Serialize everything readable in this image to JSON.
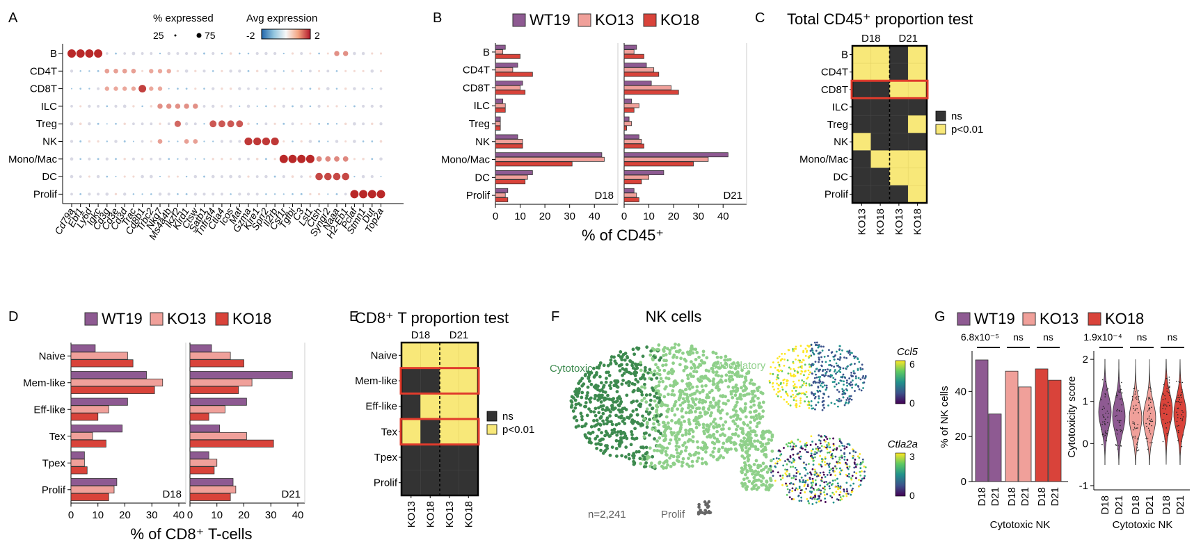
{
  "panels": {
    "A": "A",
    "B": "B",
    "C": "C",
    "D": "D",
    "E": "E",
    "F": "F",
    "G": "G"
  },
  "chart_data": [
    {
      "panel": "A",
      "type": "dotplot",
      "rows": [
        "B",
        "CD4T",
        "CD8T",
        "ILC",
        "Treg",
        "NK",
        "Mono/Mac",
        "DC",
        "Prolif"
      ],
      "genes": [
        "Cd79a",
        "Ebf1",
        "Ly6d",
        "Igkc",
        "Cd3g",
        "Cd3e",
        "Cd3d",
        "Trac",
        "Cd8b1",
        "Trbc2",
        "Nkg7",
        "Ms4a4b",
        "Ikzf2",
        "Klrd1",
        "Ctsw",
        "Satb1",
        "Tnfrsf4",
        "Ctla4",
        "Icos",
        "Maf",
        "Gzma",
        "Klre1",
        "Sprr2",
        "Il2rb",
        "Csf1r",
        "Tgfbi",
        "C3",
        "Lst1",
        "Ctsh",
        "Syngr2",
        "Naaa",
        "H2-Eb1",
        "Pclaf",
        "Stmn1",
        "Dut",
        "Top2a"
      ],
      "legend_size_title": "% expressed",
      "legend_size_ticks": [
        "25",
        "75"
      ],
      "legend_color_title": "Avg expression",
      "legend_color_ticks": [
        "-2",
        "2"
      ],
      "highlights": [
        {
          "row": "B",
          "cols": [
            0,
            1,
            2,
            3
          ],
          "level": 1.0
        },
        {
          "row": "B",
          "cols": [
            30,
            31
          ],
          "level": 0.35
        },
        {
          "row": "CD4T",
          "cols": [
            4,
            5,
            6,
            7
          ],
          "level": 0.25
        },
        {
          "row": "CD4T",
          "cols": [
            9,
            10,
            11
          ],
          "level": 0.2
        },
        {
          "row": "CD8T",
          "cols": [
            4,
            5,
            6,
            7,
            9,
            10
          ],
          "level": 0.2
        },
        {
          "row": "CD8T",
          "cols": [
            8
          ],
          "level": 0.85
        },
        {
          "row": "ILC",
          "cols": [
            10,
            11,
            12,
            13,
            14
          ],
          "level": 0.35
        },
        {
          "row": "Treg",
          "cols": [
            12
          ],
          "level": 0.6
        },
        {
          "row": "Treg",
          "cols": [
            16,
            17,
            18,
            19
          ],
          "level": 0.7
        },
        {
          "row": "NK",
          "cols": [
            10,
            13,
            14
          ],
          "level": 0.25
        },
        {
          "row": "NK",
          "cols": [
            20,
            21,
            22,
            23
          ],
          "level": 0.9
        },
        {
          "row": "Mono/Mac",
          "cols": [
            24,
            25,
            26,
            27
          ],
          "level": 1.0
        },
        {
          "row": "Mono/Mac",
          "cols": [
            28,
            29,
            30,
            31
          ],
          "level": 0.4
        },
        {
          "row": "DC",
          "cols": [
            28,
            29,
            30,
            31
          ],
          "level": 0.8
        },
        {
          "row": "Prolif",
          "cols": [
            32,
            33,
            34,
            35
          ],
          "level": 1.0
        }
      ]
    },
    {
      "panel": "B",
      "type": "bar",
      "orientation": "horizontal",
      "series_names": [
        "WT19",
        "KO13",
        "KO18"
      ],
      "categories": [
        "B",
        "CD4T",
        "CD8T",
        "ILC",
        "Treg",
        "NK",
        "Mono/Mac",
        "DC",
        "Prolif"
      ],
      "xlabel": "% of CD45⁺",
      "xticks": [
        "0",
        "10",
        "20",
        "30",
        "40"
      ],
      "xlim": [
        0,
        45
      ],
      "facets": [
        {
          "label": "D18",
          "series": [
            {
              "name": "WT19",
              "values": [
                4,
                9,
                11,
                3,
                2,
                9,
                43,
                15,
                5
              ]
            },
            {
              "name": "KO13",
              "values": [
                3,
                7,
                10,
                4,
                2,
                11,
                44,
                13,
                4
              ]
            },
            {
              "name": "KO18",
              "values": [
                10,
                15,
                12,
                4,
                2,
                11,
                31,
                12,
                5
              ]
            }
          ]
        },
        {
          "label": "D21",
          "series": [
            {
              "name": "WT19",
              "values": [
                5,
                9,
                11,
                3,
                2,
                6,
                42,
                16,
                4
              ]
            },
            {
              "name": "KO13",
              "values": [
                4,
                12,
                19,
                6,
                3,
                7,
                34,
                10,
                5
              ]
            },
            {
              "name": "KO18",
              "values": [
                8,
                14,
                22,
                4,
                1,
                8,
                28,
                7,
                6
              ]
            }
          ]
        }
      ]
    },
    {
      "panel": "C",
      "type": "heatmap",
      "title": "Total CD45⁺ proportion test",
      "col_groups": [
        "D18",
        "D21"
      ],
      "columns": [
        "KO13",
        "KO18",
        "KO13",
        "KO18"
      ],
      "rows": [
        "B",
        "CD4T",
        "CD8T",
        "ILC",
        "Treg",
        "NK",
        "Mono/Mac",
        "DC",
        "Prolif"
      ],
      "values": [
        [
          1,
          1,
          0,
          1
        ],
        [
          1,
          1,
          0,
          1
        ],
        [
          0,
          0,
          1,
          1
        ],
        [
          0,
          0,
          0,
          0
        ],
        [
          0,
          0,
          0,
          1
        ],
        [
          1,
          0,
          0,
          0
        ],
        [
          0,
          1,
          1,
          1
        ],
        [
          0,
          0,
          1,
          1
        ],
        [
          0,
          0,
          0,
          1
        ]
      ],
      "highlighted_rows": [
        "CD8T"
      ],
      "legend": [
        "ns",
        "p<0.01"
      ]
    },
    {
      "panel": "D",
      "type": "bar",
      "orientation": "horizontal",
      "series_names": [
        "WT19",
        "KO13",
        "KO18"
      ],
      "categories": [
        "Naive",
        "Mem-like",
        "Eff-like",
        "Tex",
        "Tpex",
        "Prolif"
      ],
      "xlabel": "% of CD8⁺ T-cells",
      "xticks": [
        "0",
        "10",
        "20",
        "30",
        "40"
      ],
      "xlim": [
        0,
        40
      ],
      "facets": [
        {
          "label": "D18",
          "series": [
            {
              "name": "WT19",
              "values": [
                9,
                28,
                21,
                19,
                5,
                17
              ]
            },
            {
              "name": "KO13",
              "values": [
                21,
                34,
                14,
                8,
                5,
                16
              ]
            },
            {
              "name": "KO18",
              "values": [
                23,
                31,
                10,
                13,
                6,
                14
              ]
            }
          ]
        },
        {
          "label": "D21",
          "series": [
            {
              "name": "WT19",
              "values": [
                8,
                38,
                21,
                11,
                7,
                16
              ]
            },
            {
              "name": "KO13",
              "values": [
                15,
                23,
                13,
                21,
                10,
                17
              ]
            },
            {
              "name": "KO18",
              "values": [
                20,
                18,
                7,
                31,
                9,
                15
              ]
            }
          ]
        }
      ]
    },
    {
      "panel": "E",
      "type": "heatmap",
      "title": "CD8⁺ T proportion test",
      "col_groups": [
        "D18",
        "D21"
      ],
      "columns": [
        "KO13",
        "KO18",
        "KO13",
        "KO18"
      ],
      "rows": [
        "Naive",
        "Mem-like",
        "Eff-like",
        "Tex",
        "Tpex",
        "Prolif"
      ],
      "values": [
        [
          1,
          1,
          1,
          1
        ],
        [
          0,
          0,
          1,
          1
        ],
        [
          0,
          1,
          1,
          1
        ],
        [
          1,
          0,
          1,
          1
        ],
        [
          0,
          0,
          0,
          0
        ],
        [
          0,
          0,
          0,
          0
        ]
      ],
      "highlighted_rows": [
        "Mem-like",
        "Tex"
      ],
      "legend": [
        "ns",
        "p<0.01"
      ]
    },
    {
      "panel": "F",
      "type": "scatter",
      "title": "NK cells",
      "cluster_labels": [
        "Cytotoxic",
        "Modulatory",
        "Prolif"
      ],
      "count_label": "n=2,241",
      "feature_plots": [
        {
          "gene": "Ccl5",
          "ticks": [
            "6",
            "0"
          ]
        },
        {
          "gene": "Ctla2a",
          "ticks": [
            "3",
            "0"
          ]
        }
      ]
    },
    {
      "panel": "G",
      "type": "bar",
      "series_names": [
        "WT19",
        "KO13",
        "KO18"
      ],
      "categories": [
        "D18",
        "D21",
        "D18",
        "D21",
        "D18",
        "D21"
      ],
      "values": [
        54,
        30,
        49,
        42,
        50,
        45
      ],
      "ylabel": "% of NK cells",
      "xlabel": "Cytotoxic NK",
      "yticks": [
        "0",
        "20",
        "40"
      ],
      "ylim": [
        0,
        58
      ],
      "pvalues": [
        "6.8x10⁻⁵",
        "ns",
        "ns"
      ]
    },
    {
      "panel": "G",
      "type": "violin",
      "categories": [
        "D18",
        "D21",
        "D18",
        "D21",
        "D18",
        "D21"
      ],
      "ylabel": "Cytotoxicity score",
      "xlabel": "Cytotoxic NK",
      "yticks": [
        "2",
        "1",
        "0",
        "-1"
      ],
      "ylim": [
        -1.1,
        2.2
      ],
      "medians": [
        0.75,
        0.65,
        0.6,
        0.6,
        0.8,
        0.7
      ],
      "pvalues": [
        "1.9x10⁻⁴",
        "ns",
        "ns"
      ]
    }
  ],
  "colors": {
    "WT19": "#8e5a92",
    "KO13": "#f0a09a",
    "KO18": "#d9433a",
    "ns": "#333333",
    "sig": "#f8e879",
    "highlight": "#e03b2c"
  }
}
